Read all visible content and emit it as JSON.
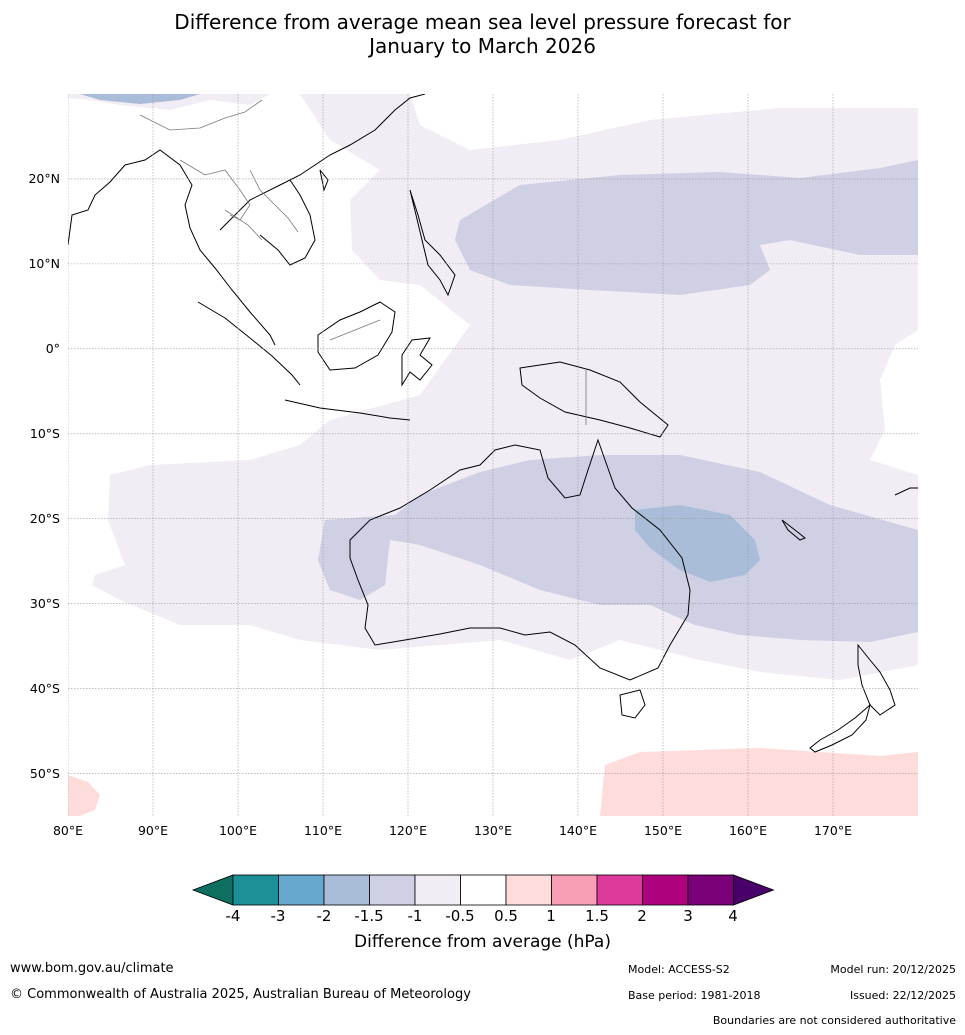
{
  "title": {
    "line1": "Difference from average mean sea level pressure forecast for",
    "line2": "January to March 2026"
  },
  "map": {
    "lat_labels": [
      "20°N",
      "10°N",
      "0°",
      "10°S",
      "20°S",
      "30°S",
      "40°S",
      "50°S"
    ],
    "lon_labels": [
      "80°E",
      "90°E",
      "100°E",
      "110°E",
      "120°E",
      "130°E",
      "140°E",
      "150°E",
      "160°E",
      "170°E"
    ],
    "extent": {
      "lon_min": 80,
      "lon_max": 180,
      "lat_min": -55,
      "lat_max": 30
    },
    "colors": {
      "neg_1_5": "#cfd0e4",
      "neg_1": "#f2ecf5",
      "neg_2": "#a9bcd8",
      "pos_0_5": "#fddcdb",
      "coast": "#000000",
      "borders": "#7a7a7a"
    }
  },
  "colorbar": {
    "bins": [
      {
        "color": "#0e6e5f"
      },
      {
        "color": "#1d8f99"
      },
      {
        "color": "#67a8cf"
      },
      {
        "color": "#a9bcd8"
      },
      {
        "color": "#cfd0e4"
      },
      {
        "color": "#f2ecf5"
      },
      {
        "color": "#ffffff"
      },
      {
        "color": "#fddcdb"
      },
      {
        "color": "#f99fb5"
      },
      {
        "color": "#dd3a9c"
      },
      {
        "color": "#ae017e"
      },
      {
        "color": "#7a0177"
      },
      {
        "color": "#49006a"
      }
    ],
    "ticks": [
      "-4",
      "-3",
      "-2",
      "-1.5",
      "-1",
      "-0.5",
      "0.5",
      "1",
      "1.5",
      "2",
      "3",
      "4"
    ],
    "label": "Difference from average (hPa)"
  },
  "footer": {
    "url": "www.bom.gov.au/climate",
    "copyright": "© Commonwealth of Australia 2025, Australian Bureau of Meteorology",
    "model": "Model: ACCESS-S2",
    "base_period": "Base period: 1981-2018",
    "model_run": "Model run: 20/12/2025",
    "issued": "Issued: 22/12/2025",
    "disclaimer": "Boundaries are not considered authoritative"
  }
}
